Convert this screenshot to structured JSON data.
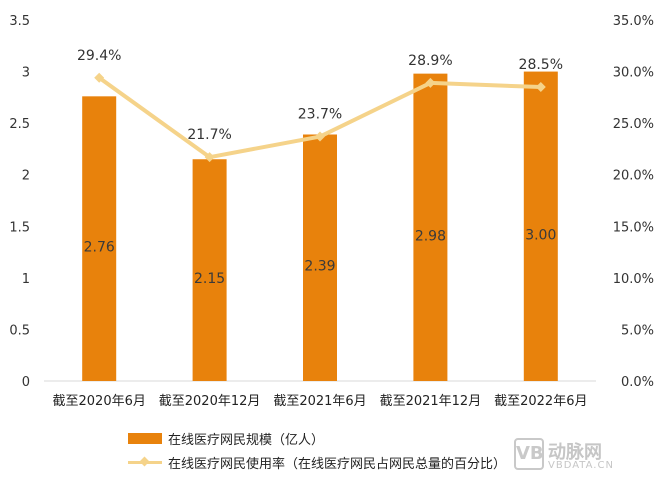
{
  "chart_data": {
    "type": "bar+line",
    "categories": [
      "截至2020年6月",
      "截至2020年12月",
      "截至2021年6月",
      "截至2021年12月",
      "截至2022年6月"
    ],
    "series": [
      {
        "name": "在线医疗网民规模（亿人）",
        "type": "bar",
        "axis": "left",
        "color": "#e8820c",
        "values": [
          2.76,
          2.15,
          2.39,
          2.98,
          3.0
        ],
        "labels": [
          "2.76",
          "2.15",
          "2.39",
          "2.98",
          "3.00"
        ]
      },
      {
        "name": "在线医疗网民使用率（在线医疗网民占网民总量的百分比）",
        "type": "line",
        "axis": "right",
        "color": "#f5d38a",
        "values": [
          29.4,
          21.7,
          23.7,
          28.9,
          28.5
        ],
        "labels": [
          "29.4%",
          "21.7%",
          "23.7%",
          "28.9%",
          "28.5%"
        ]
      }
    ],
    "y_left": {
      "min": 0,
      "max": 3.5,
      "ticks": [
        "0",
        "0.5",
        "1",
        "1.5",
        "2",
        "2.5",
        "3",
        "3.5"
      ]
    },
    "y_right": {
      "min": 0,
      "max": 35,
      "ticks": [
        "0.0%",
        "5.0%",
        "10.0%",
        "15.0%",
        "20.0%",
        "25.0%",
        "30.0%",
        "35.0%"
      ]
    },
    "grid": false,
    "legend_position": "bottom-left"
  },
  "watermark": {
    "logo_text": "VB",
    "name": "动脉网",
    "site": "VBDATA.CN"
  }
}
